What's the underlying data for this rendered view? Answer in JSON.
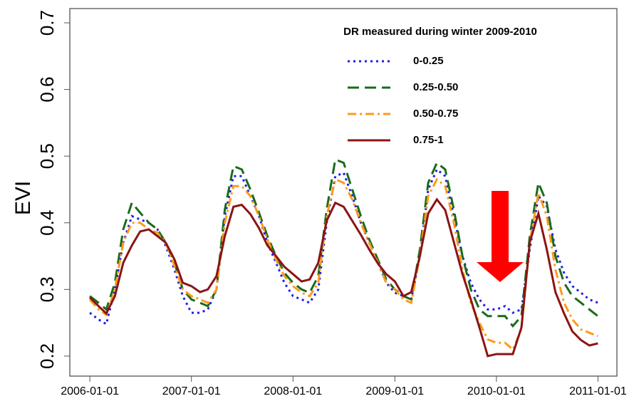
{
  "chart_data": {
    "type": "line",
    "ylabel": "EVI",
    "legend_title": "DR measured during winter 2009-2010",
    "legend_position": "upper right",
    "x": [
      "2006-01-01",
      "2006-02-01",
      "2006-03-01",
      "2006-04-01",
      "2006-05-01",
      "2006-06-01",
      "2006-07-01",
      "2006-08-01",
      "2006-09-01",
      "2006-10-01",
      "2006-11-01",
      "2006-12-01",
      "2007-01-01",
      "2007-02-01",
      "2007-03-01",
      "2007-04-01",
      "2007-05-01",
      "2007-06-01",
      "2007-07-01",
      "2007-08-01",
      "2007-09-01",
      "2007-10-01",
      "2007-11-01",
      "2007-12-01",
      "2008-01-01",
      "2008-02-01",
      "2008-03-01",
      "2008-04-01",
      "2008-05-01",
      "2008-06-01",
      "2008-07-01",
      "2008-08-01",
      "2008-09-01",
      "2008-10-01",
      "2008-11-01",
      "2008-12-01",
      "2009-01-01",
      "2009-02-01",
      "2009-03-01",
      "2009-04-01",
      "2009-05-01",
      "2009-06-01",
      "2009-07-01",
      "2009-08-01",
      "2009-09-01",
      "2009-10-01",
      "2009-11-01",
      "2009-12-01",
      "2010-01-01",
      "2010-02-01",
      "2010-03-01",
      "2010-04-01",
      "2010-05-01",
      "2010-06-01",
      "2010-07-01",
      "2010-08-01",
      "2010-09-01",
      "2010-10-01",
      "2010-11-01",
      "2010-12-01",
      "2011-01-01"
    ],
    "series": [
      {
        "name": "0-0.25",
        "color": "#1f1fe6",
        "linestyle": "dotted",
        "values": [
          0.265,
          0.255,
          0.248,
          0.3,
          0.37,
          0.41,
          0.405,
          0.4,
          0.39,
          0.365,
          0.33,
          0.29,
          0.265,
          0.265,
          0.27,
          0.3,
          0.41,
          0.47,
          0.47,
          0.44,
          0.41,
          0.37,
          0.34,
          0.31,
          0.29,
          0.285,
          0.28,
          0.3,
          0.4,
          0.47,
          0.475,
          0.44,
          0.4,
          0.37,
          0.34,
          0.31,
          0.295,
          0.29,
          0.285,
          0.35,
          0.45,
          0.48,
          0.47,
          0.41,
          0.35,
          0.31,
          0.285,
          0.27,
          0.27,
          0.275,
          0.265,
          0.27,
          0.36,
          0.44,
          0.425,
          0.36,
          0.325,
          0.305,
          0.295,
          0.285,
          0.28
        ]
      },
      {
        "name": "0.25-0.50",
        "color": "#1a6b1a",
        "linestyle": "dashed",
        "values": [
          0.29,
          0.28,
          0.27,
          0.31,
          0.39,
          0.43,
          0.415,
          0.4,
          0.39,
          0.37,
          0.34,
          0.3,
          0.285,
          0.28,
          0.275,
          0.3,
          0.42,
          0.485,
          0.48,
          0.45,
          0.415,
          0.38,
          0.35,
          0.325,
          0.31,
          0.3,
          0.295,
          0.32,
          0.42,
          0.495,
          0.49,
          0.45,
          0.41,
          0.375,
          0.345,
          0.315,
          0.3,
          0.29,
          0.285,
          0.36,
          0.46,
          0.49,
          0.48,
          0.42,
          0.35,
          0.3,
          0.27,
          0.26,
          0.26,
          0.26,
          0.245,
          0.26,
          0.38,
          0.46,
          0.43,
          0.35,
          0.31,
          0.29,
          0.28,
          0.27,
          0.26
        ]
      },
      {
        "name": "0.50-0.75",
        "color": "#ff9a1a",
        "linestyle": "dashdot",
        "values": [
          0.285,
          0.27,
          0.262,
          0.3,
          0.37,
          0.4,
          0.4,
          0.39,
          0.385,
          0.37,
          0.335,
          0.3,
          0.29,
          0.285,
          0.28,
          0.3,
          0.4,
          0.455,
          0.455,
          0.44,
          0.41,
          0.375,
          0.345,
          0.32,
          0.305,
          0.295,
          0.29,
          0.31,
          0.41,
          0.465,
          0.46,
          0.435,
          0.4,
          0.37,
          0.34,
          0.31,
          0.3,
          0.285,
          0.28,
          0.35,
          0.44,
          0.465,
          0.455,
          0.4,
          0.33,
          0.28,
          0.25,
          0.225,
          0.22,
          0.22,
          0.21,
          0.24,
          0.37,
          0.445,
          0.41,
          0.33,
          0.28,
          0.255,
          0.24,
          0.235,
          0.23
        ]
      },
      {
        "name": "0.75-1",
        "color": "#8b1414",
        "linestyle": "solid",
        "values": [
          0.288,
          0.275,
          0.264,
          0.29,
          0.34,
          0.366,
          0.387,
          0.39,
          0.38,
          0.37,
          0.345,
          0.31,
          0.305,
          0.296,
          0.3,
          0.32,
          0.38,
          0.424,
          0.427,
          0.413,
          0.392,
          0.366,
          0.35,
          0.334,
          0.323,
          0.312,
          0.315,
          0.34,
          0.403,
          0.43,
          0.424,
          0.403,
          0.382,
          0.36,
          0.339,
          0.323,
          0.312,
          0.29,
          0.296,
          0.35,
          0.414,
          0.435,
          0.419,
          0.371,
          0.323,
          0.285,
          0.243,
          0.2,
          0.203,
          0.203,
          0.203,
          0.243,
          0.371,
          0.414,
          0.36,
          0.296,
          0.264,
          0.237,
          0.224,
          0.216,
          0.219
        ]
      }
    ],
    "xlim": [
      "2005-10-21",
      "2011-03-10"
    ],
    "xticks": [
      "2006-01-01",
      "2007-01-01",
      "2008-01-01",
      "2009-01-01",
      "2010-01-01",
      "2011-01-01"
    ],
    "ylim": [
      0.17,
      0.7214
    ],
    "yticks": [
      0.2,
      0.3,
      0.4,
      0.5,
      0.6,
      0.7
    ],
    "grid": false
  }
}
